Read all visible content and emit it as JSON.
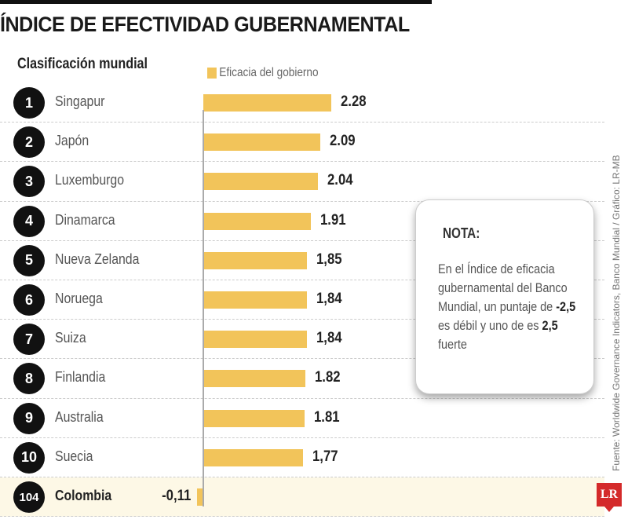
{
  "title": "ÍNDICE DE EFECTIVIDAD GUBERNAMENTAL",
  "subtitle": "Clasificación mundial",
  "legend": "Eficacia del gobierno",
  "note": {
    "title": "NOTA:",
    "body_1": "En el Índice de eficacia gubernamental del Banco Mundial, un puntaje de ",
    "bold_1": "-2,5",
    "body_2": " es débil y uno de es ",
    "bold_2": "2,5",
    "body_3": " fuerte"
  },
  "source": "Fuente: Worldwide Governance Indicators, Banco Mundial / Gráfico: LR-MB",
  "logo": "LR",
  "colors": {
    "bar": "#f2c45a",
    "highlight_row": "#fdf8e6",
    "logo": "#d42a2a"
  },
  "chart_data": {
    "type": "bar",
    "orientation": "horizontal",
    "title": "ÍNDICE DE EFECTIVIDAD GUBERNAMENTAL",
    "legend_position": "top",
    "series": [
      {
        "name": "Eficacia del gobierno"
      }
    ],
    "rows": [
      {
        "rank": "1",
        "country": "Singapur",
        "value": 2.28,
        "label": "2.28"
      },
      {
        "rank": "2",
        "country": "Japón",
        "value": 2.09,
        "label": "2.09"
      },
      {
        "rank": "3",
        "country": "Luxemburgo",
        "value": 2.04,
        "label": "2.04"
      },
      {
        "rank": "4",
        "country": "Dinamarca",
        "value": 1.91,
        "label": "1.91"
      },
      {
        "rank": "5",
        "country": "Nueva Zelanda",
        "value": 1.85,
        "label": "1,85"
      },
      {
        "rank": "6",
        "country": "Noruega",
        "value": 1.84,
        "label": "1,84"
      },
      {
        "rank": "7",
        "country": "Suiza",
        "value": 1.84,
        "label": "1,84"
      },
      {
        "rank": "8",
        "country": "Finlandia",
        "value": 1.82,
        "label": "1.82"
      },
      {
        "rank": "9",
        "country": "Australia",
        "value": 1.81,
        "label": "1.81"
      },
      {
        "rank": "10",
        "country": "Suecia",
        "value": 1.77,
        "label": "1,77"
      },
      {
        "rank": "104",
        "country": "Colombia",
        "value": -0.11,
        "label": "-0,11",
        "highlight": true
      }
    ]
  }
}
